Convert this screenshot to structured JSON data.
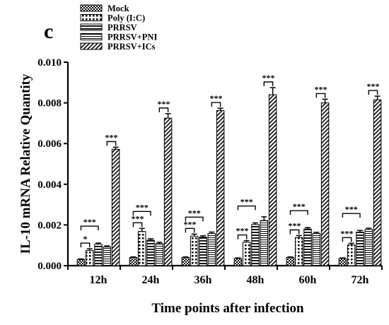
{
  "panel_label": "c",
  "chart_data": {
    "type": "bar",
    "title": "",
    "xlabel": "Time points after infection",
    "ylabel": "IL-10 mRNA Relative Quantity",
    "ylim": [
      0,
      0.01
    ],
    "yticks": [
      "0.000",
      "0.002",
      "0.004",
      "0.006",
      "0.008",
      "0.010"
    ],
    "categories": [
      "12h",
      "24h",
      "36h",
      "48h",
      "60h",
      "72h"
    ],
    "legend_position": "top-left",
    "series": [
      {
        "name": "Mock",
        "pattern": "checker",
        "values": [
          0.0003,
          0.0004,
          0.0004,
          0.00035,
          0.0004,
          0.00035
        ],
        "errors": [
          3e-05,
          3e-05,
          3e-05,
          3e-05,
          3e-05,
          3e-05
        ]
      },
      {
        "name": "Poly (I:C)",
        "pattern": "dots",
        "values": [
          0.00075,
          0.00168,
          0.00145,
          0.00115,
          0.00138,
          0.00102
        ],
        "errors": [
          8e-05,
          0.00015,
          0.0001,
          8e-05,
          0.0001,
          8e-05
        ]
      },
      {
        "name": "PRRSV",
        "pattern": "hstripes",
        "values": [
          0.00105,
          0.00125,
          0.0014,
          0.00202,
          0.0018,
          0.00165
        ],
        "errors": [
          6e-05,
          7e-05,
          7e-05,
          8e-05,
          7e-05,
          8e-05
        ]
      },
      {
        "name": "PRRSV+PNI",
        "pattern": "hstripes-fine",
        "values": [
          0.00092,
          0.00108,
          0.00158,
          0.00222,
          0.00158,
          0.00178
        ],
        "errors": [
          5e-05,
          7e-05,
          7e-05,
          0.00018,
          6e-05,
          6e-05
        ]
      },
      {
        "name": "PRRSV+ICs",
        "pattern": "diagonal",
        "values": [
          0.00572,
          0.00725,
          0.00762,
          0.0084,
          0.008,
          0.00815
        ],
        "errors": [
          0.0001,
          0.00022,
          0.00012,
          0.00035,
          0.00018,
          0.00018
        ]
      }
    ],
    "significance": [
      {
        "category": 0,
        "from_series": 0,
        "to_series": 1,
        "label": "*"
      },
      {
        "category": 0,
        "from_series": 0,
        "to_series": 2,
        "label": "***"
      },
      {
        "category": 0,
        "from_series": 3,
        "to_series": 4,
        "label": "***"
      },
      {
        "category": 1,
        "from_series": 0,
        "to_series": 1,
        "label": "***"
      },
      {
        "category": 1,
        "from_series": 0,
        "to_series": 2,
        "label": "***"
      },
      {
        "category": 1,
        "from_series": 3,
        "to_series": 4,
        "label": "***"
      },
      {
        "category": 2,
        "from_series": 0,
        "to_series": 1,
        "label": "***"
      },
      {
        "category": 2,
        "from_series": 0,
        "to_series": 2,
        "label": "***"
      },
      {
        "category": 2,
        "from_series": 3,
        "to_series": 4,
        "label": "***"
      },
      {
        "category": 3,
        "from_series": 0,
        "to_series": 1,
        "label": "***"
      },
      {
        "category": 3,
        "from_series": 0,
        "to_series": 2,
        "label": "***"
      },
      {
        "category": 3,
        "from_series": 3,
        "to_series": 4,
        "label": "***"
      },
      {
        "category": 4,
        "from_series": 0,
        "to_series": 1,
        "label": "***"
      },
      {
        "category": 4,
        "from_series": 0,
        "to_series": 2,
        "label": "***"
      },
      {
        "category": 4,
        "from_series": 3,
        "to_series": 4,
        "label": "***"
      },
      {
        "category": 5,
        "from_series": 0,
        "to_series": 1,
        "label": "***"
      },
      {
        "category": 5,
        "from_series": 0,
        "to_series": 2,
        "label": "***"
      },
      {
        "category": 5,
        "from_series": 3,
        "to_series": 4,
        "label": "***"
      }
    ]
  }
}
